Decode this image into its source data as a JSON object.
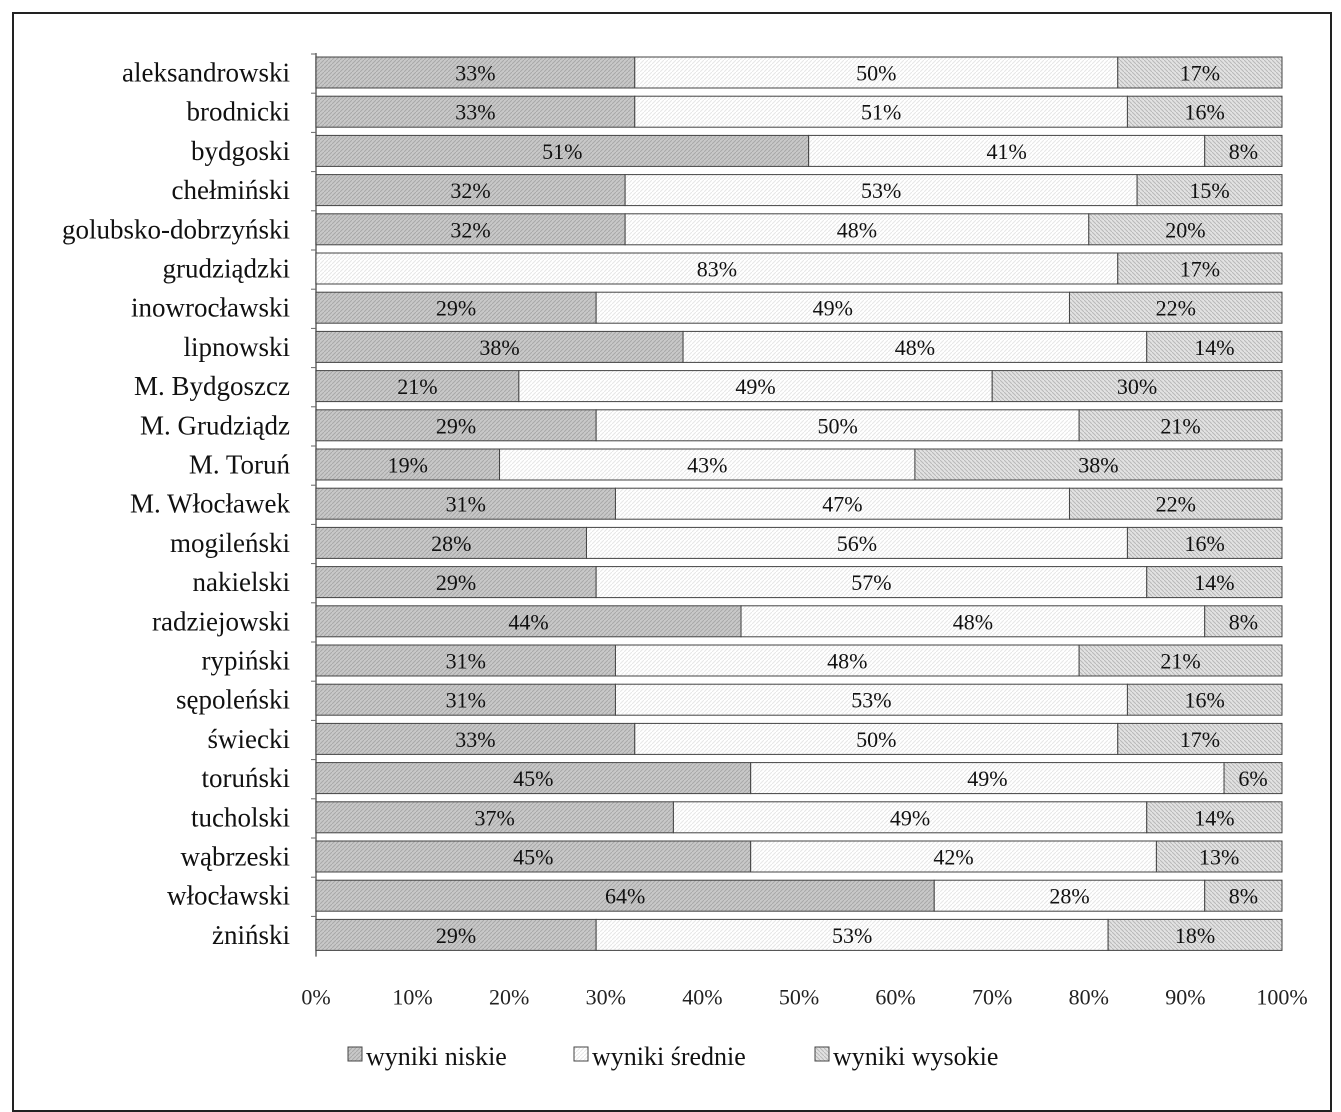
{
  "chart_data": {
    "type": "bar",
    "orientation": "horizontal",
    "stacked": "percent",
    "categories": [
      "aleksandrowski",
      "brodnicki",
      "bydgoski",
      "chełmiński",
      "golubsko-dobrzyński",
      "grudziądzki",
      "inowrocławski",
      "lipnowski",
      "M. Bydgoszcz",
      "M. Grudziądz",
      "M. Toruń",
      "M. Włocławek",
      "mogileński",
      "nakielski",
      "radziejowski",
      "rypiński",
      "sępoleński",
      "świecki",
      "toruński",
      "tucholski",
      "wąbrzeski",
      "włocławski",
      "żniński"
    ],
    "series": [
      {
        "name": "wyniki niskie",
        "values": [
          33,
          33,
          51,
          32,
          32,
          0,
          29,
          38,
          21,
          29,
          19,
          31,
          28,
          29,
          44,
          31,
          31,
          33,
          45,
          37,
          45,
          64,
          29
        ],
        "labels": [
          "33%",
          "33%",
          "51%",
          "32%",
          "32%",
          "",
          "29%",
          "38%",
          "21%",
          "29%",
          "19%",
          "31%",
          "28%",
          "29%",
          "44%",
          "31%",
          "31%",
          "33%",
          "45%",
          "37%",
          "45%",
          "64%",
          "29%"
        ]
      },
      {
        "name": "wyniki średnie",
        "values": [
          50,
          51,
          41,
          53,
          48,
          83,
          49,
          48,
          49,
          50,
          43,
          47,
          56,
          57,
          48,
          48,
          53,
          50,
          49,
          49,
          42,
          28,
          53
        ],
        "labels": [
          "50%",
          "51%",
          "41%",
          "53%",
          "48%",
          "83%",
          "49%",
          "48%",
          "49%",
          "50%",
          "43%",
          "47%",
          "56%",
          "57%",
          "48%",
          "48%",
          "53%",
          "50%",
          "49%",
          "49%",
          "42%",
          "28%",
          "53%"
        ]
      },
      {
        "name": "wyniki wysokie",
        "values": [
          17,
          16,
          8,
          15,
          20,
          17,
          22,
          14,
          30,
          21,
          38,
          22,
          16,
          14,
          8,
          21,
          16,
          17,
          6,
          14,
          13,
          8,
          18
        ],
        "labels": [
          "17%",
          "16%",
          "8%",
          "15%",
          "20%",
          "17%",
          "22%",
          "14%",
          "30%",
          "21%",
          "38%",
          "22%",
          "16%",
          "14%",
          "8%",
          "21%",
          "16%",
          "17%",
          "6%",
          "14%",
          "13%",
          "8%",
          "18%"
        ]
      }
    ],
    "x_ticks": [
      "0%",
      "10%",
      "20%",
      "30%",
      "40%",
      "50%",
      "60%",
      "70%",
      "80%",
      "90%",
      "100%"
    ],
    "xlim": [
      0,
      100
    ],
    "colors": {
      "wyniki niskie": "#c4c4c4",
      "wyniki średnie": "#ffffff",
      "wyniki wysokie": "#dcdcdc"
    },
    "legend_position": "bottom",
    "grid": false
  }
}
